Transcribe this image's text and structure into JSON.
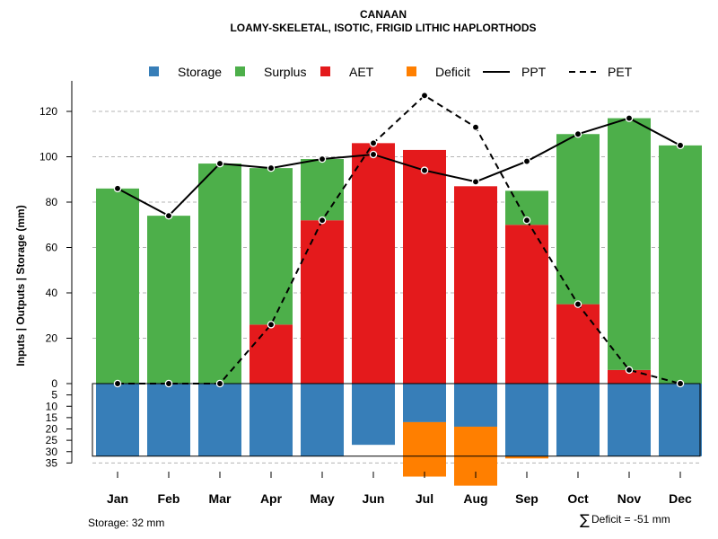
{
  "chart_data": {
    "type": "bar",
    "title": "CANAAN",
    "subtitle": "LOAMY-SKELETAL, ISOTIC, FRIGID LITHIC HAPLORTHODS",
    "ylabel": "Inputs | Outputs | Storage     (mm)",
    "categories": [
      "Jan",
      "Feb",
      "Mar",
      "Apr",
      "May",
      "Jun",
      "Jul",
      "Aug",
      "Sep",
      "Oct",
      "Nov",
      "Dec"
    ],
    "ylim": [
      -35,
      130
    ],
    "upper_ticks": [
      0,
      20,
      40,
      60,
      80,
      100,
      120
    ],
    "lower_ticks": [
      5,
      10,
      15,
      20,
      25,
      30,
      35
    ],
    "series": [
      {
        "name": "Storage",
        "color": "#377EB8",
        "values": [
          32,
          32,
          32,
          32,
          32,
          27,
          17,
          19,
          32,
          32,
          32,
          32
        ]
      },
      {
        "name": "Surplus",
        "color": "#4DAF4A",
        "values": [
          86,
          74,
          97,
          69,
          27,
          0,
          0,
          0,
          15,
          75,
          111,
          105
        ]
      },
      {
        "name": "AET",
        "color": "#E41A1C",
        "values": [
          0,
          0,
          0,
          26,
          72,
          106,
          103,
          87,
          70,
          35,
          6,
          0
        ]
      },
      {
        "name": "Deficit",
        "color": "#FF7F00",
        "values": [
          0,
          0,
          0,
          0,
          0,
          0,
          -24,
          -26,
          -1,
          0,
          0,
          0
        ]
      },
      {
        "name": "PPT",
        "style": "solid",
        "values": [
          86,
          74,
          97,
          95,
          99,
          101,
          94,
          89,
          98,
          110,
          117,
          105
        ]
      },
      {
        "name": "PET",
        "style": "dashed",
        "values": [
          0,
          0,
          0,
          26,
          72,
          106,
          127,
          113,
          72,
          35,
          6,
          0
        ]
      }
    ],
    "legend": [
      "Storage",
      "Surplus",
      "AET",
      "Deficit",
      "PPT",
      "PET"
    ],
    "legend_position": "top",
    "grid": true
  },
  "footer": {
    "storage_label": "Storage: 32 mm",
    "deficit_symbol": "∑",
    "deficit_label": "Deficit = -51 mm"
  }
}
